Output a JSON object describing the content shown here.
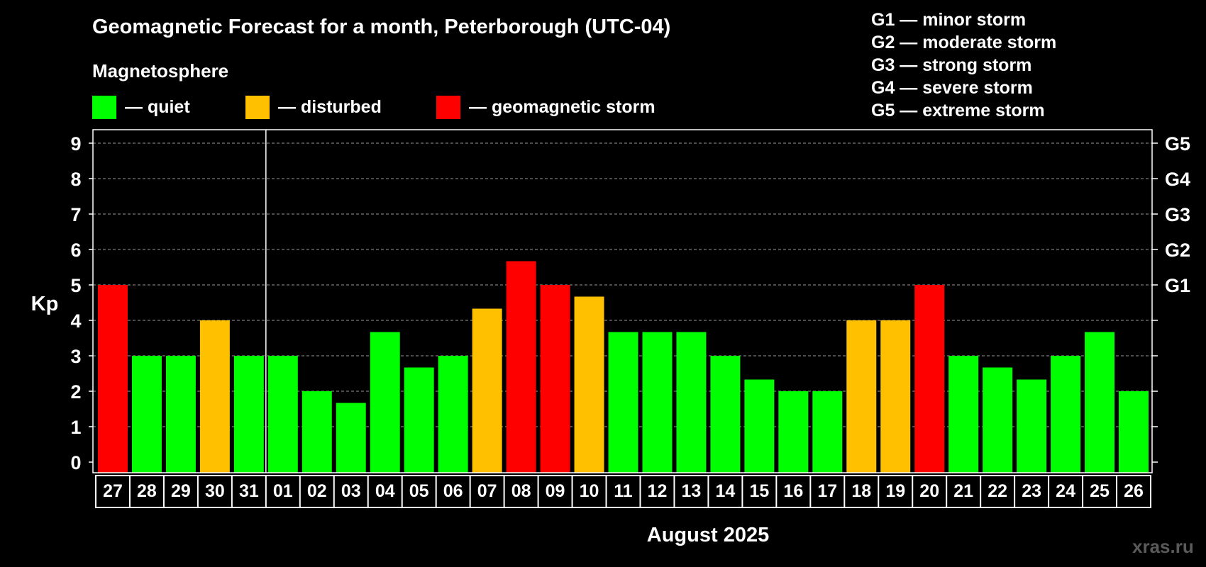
{
  "header": {
    "title": "Geomagnetic Forecast for a month, Peterborough (UTC-04)",
    "subtitle": "Magnetosphere"
  },
  "legend": [
    {
      "label": "— quiet",
      "color": "#00ff00"
    },
    {
      "label": "— disturbed",
      "color": "#ffc000"
    },
    {
      "label": "— geomagnetic storm",
      "color": "#ff0000"
    }
  ],
  "storm_scale": [
    "G1 — minor storm",
    "G2 — moderate storm",
    "G3 — strong storm",
    "G4 — severe storm",
    "G5 — extreme storm"
  ],
  "watermark": "xras.ru",
  "chart_data": {
    "type": "bar",
    "title": "Geomagnetic Forecast for a month, Peterborough (UTC-04)",
    "xlabel": "August 2025",
    "ylabel": "Kp",
    "ylim": [
      0,
      9
    ],
    "yticks": [
      0,
      1,
      2,
      3,
      4,
      5,
      6,
      7,
      8,
      9
    ],
    "right_ticks": [
      {
        "kp": 5,
        "label": "G1"
      },
      {
        "kp": 6,
        "label": "G2"
      },
      {
        "kp": 7,
        "label": "G3"
      },
      {
        "kp": 8,
        "label": "G4"
      },
      {
        "kp": 9,
        "label": "G5"
      }
    ],
    "grid": true,
    "month_divider_after_index": 4,
    "categories": [
      "27",
      "28",
      "29",
      "30",
      "31",
      "01",
      "02",
      "03",
      "04",
      "05",
      "06",
      "07",
      "08",
      "09",
      "10",
      "11",
      "12",
      "13",
      "14",
      "15",
      "16",
      "17",
      "18",
      "19",
      "20",
      "21",
      "22",
      "23",
      "24",
      "25",
      "26"
    ],
    "values": [
      5,
      3,
      3,
      4,
      3,
      3,
      2,
      1.67,
      3.67,
      2.67,
      3,
      4.33,
      5.67,
      5,
      4.67,
      3.67,
      3.67,
      3.67,
      3,
      2.33,
      2,
      2,
      4,
      4,
      5,
      3,
      2.67,
      2.33,
      3,
      3.67,
      2
    ],
    "levels": [
      "storm",
      "quiet",
      "quiet",
      "disturbed",
      "quiet",
      "quiet",
      "quiet",
      "quiet",
      "quiet",
      "quiet",
      "quiet",
      "disturbed",
      "storm",
      "storm",
      "disturbed",
      "quiet",
      "quiet",
      "quiet",
      "quiet",
      "quiet",
      "quiet",
      "quiet",
      "disturbed",
      "disturbed",
      "storm",
      "quiet",
      "quiet",
      "quiet",
      "quiet",
      "quiet",
      "quiet"
    ],
    "level_colors": {
      "quiet": "#00ff00",
      "disturbed": "#ffc000",
      "storm": "#ff0000"
    }
  }
}
